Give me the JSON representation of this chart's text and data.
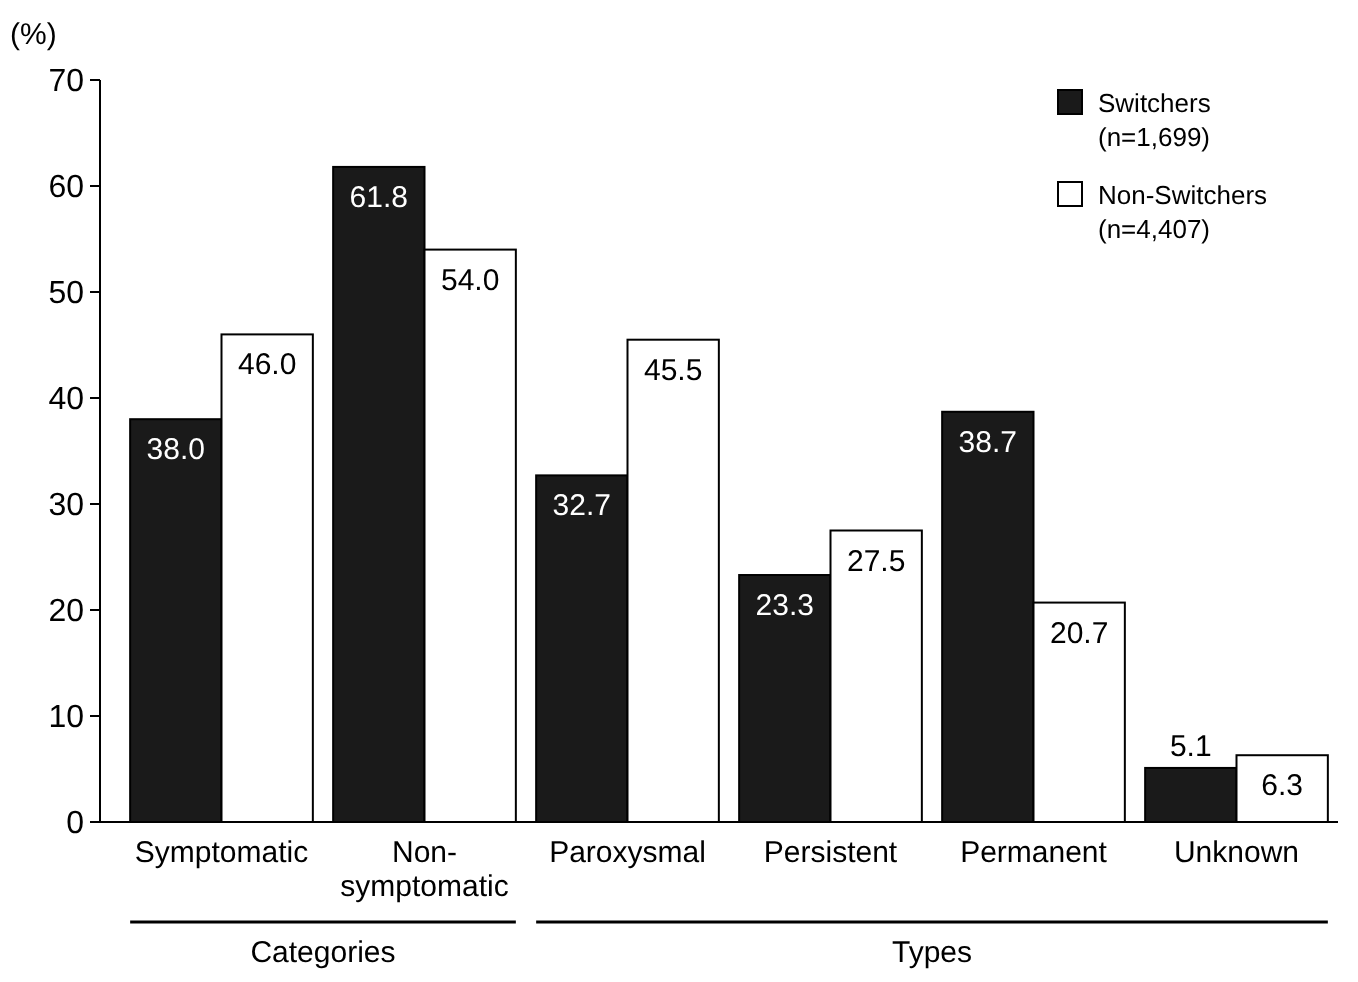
{
  "chart_data": {
    "type": "bar",
    "ylabel": "(%)",
    "categories": [
      "Symptomatic",
      "Non-symptomatic",
      "Paroxysmal",
      "Persistent",
      "Permanent",
      "Unknown"
    ],
    "series": [
      {
        "name": "Switchers (n=1,699)",
        "color": "#1a1a1a",
        "values": [
          38.0,
          61.8,
          32.7,
          23.3,
          38.7,
          5.1
        ],
        "value_labels": [
          "38.0",
          "61.8",
          "32.7",
          "23.3",
          "38.7",
          "5.1"
        ]
      },
      {
        "name": "Non-Switchers (n=4,407)",
        "color": "#ffffff",
        "values": [
          46.0,
          54.0,
          45.5,
          27.5,
          20.7,
          6.3
        ],
        "value_labels": [
          "46.0",
          "54.0",
          "45.5",
          "27.5",
          "20.7",
          "6.3"
        ]
      }
    ],
    "ylim": [
      0,
      70
    ],
    "yticks": [
      0,
      10,
      20,
      30,
      40,
      50,
      60,
      70
    ],
    "grid": false,
    "legend": "top right",
    "annotations": [
      "Categories",
      "Types"
    ]
  }
}
